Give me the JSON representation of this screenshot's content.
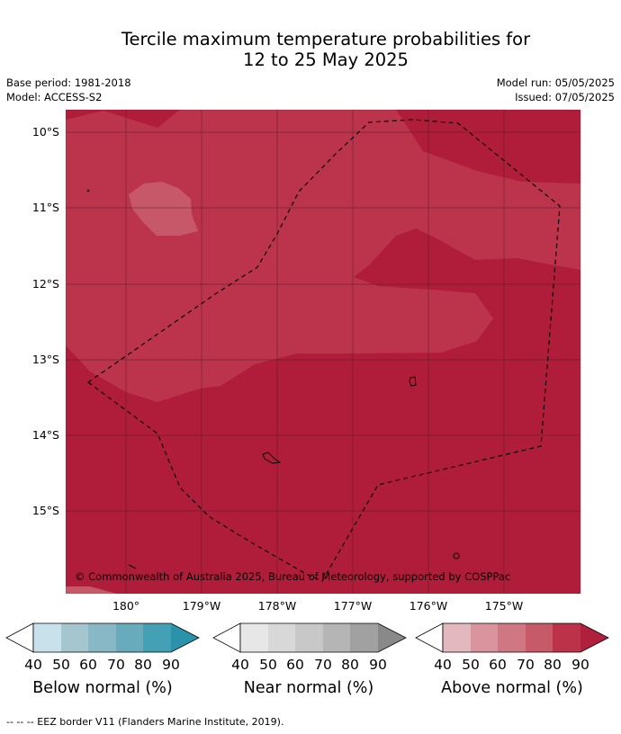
{
  "title_line1": "Tercile maximum temperature probabilities for",
  "title_line2": "12 to 25 May 2025",
  "base_period": "Base period: 1981-2018",
  "model": "Model: ACCESS-S2",
  "model_run": "Model run: 05/05/2025",
  "issued": "Issued: 07/05/2025",
  "lat_labels": [
    "10°S",
    "11°S",
    "12°S",
    "13°S",
    "14°S",
    "15°S"
  ],
  "lon_labels": [
    "180°",
    "179°W",
    "178°W",
    "177°W",
    "176°W",
    "175°W"
  ],
  "copyright": "© Commonwealth of Australia 2025, Bureau of Meteorology, supported by COSPPac",
  "colorbars": [
    {
      "title": "Below normal (%)",
      "ticks": [
        "40",
        "50",
        "60",
        "70",
        "80",
        "90"
      ],
      "colors": [
        "#c9e1ea",
        "#a5c6cf",
        "#88b8c6",
        "#68abbd",
        "#44a0b4",
        "#2a92ab"
      ]
    },
    {
      "title": "Near normal (%)",
      "ticks": [
        "40",
        "50",
        "60",
        "70",
        "80",
        "90"
      ],
      "colors": [
        "#e7e7e7",
        "#d8d8d8",
        "#c8c8c8",
        "#b5b5b5",
        "#a1a1a1",
        "#898989"
      ]
    },
    {
      "title": "Above normal (%)",
      "ticks": [
        "40",
        "50",
        "60",
        "70",
        "80",
        "90"
      ],
      "colors": [
        "#e3b9bf",
        "#d9949d",
        "#cf7883",
        "#c65a69",
        "#bb3249",
        "#b01f3c"
      ]
    }
  ],
  "eez_note": "--  --  -- EEZ border V11 (Flanders Marine Institute, 2019).",
  "map_colors": {
    "p90": "#b01d3a",
    "p80": "#bb344b",
    "p70": "#c6586a"
  }
}
